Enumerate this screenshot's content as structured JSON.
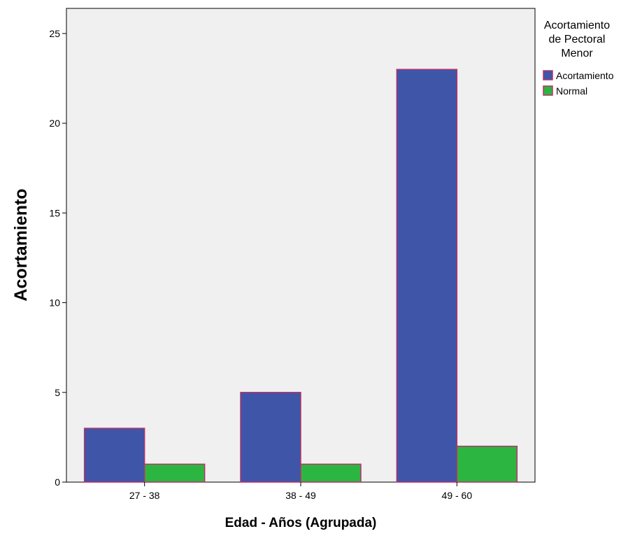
{
  "chart_data": {
    "type": "bar",
    "categories": [
      "27 - 38",
      "38 - 49",
      "49 - 60"
    ],
    "series": [
      {
        "name": "Acortamiento",
        "values": [
          3,
          5,
          23
        ],
        "color": "#3f55a8"
      },
      {
        "name": "Normal",
        "values": [
          1,
          1,
          2
        ],
        "color": "#2db542"
      }
    ],
    "xlabel": "Edad - Años (Agrupada)",
    "ylabel": "Acortamiento",
    "ylim": [
      0,
      26.4
    ],
    "yticks": [
      0,
      5,
      10,
      15,
      20,
      25
    ],
    "legend": {
      "title_lines": [
        "Acortamiento",
        "de Pectoral",
        "Menor"
      ],
      "position": "right"
    },
    "grid": false,
    "plot_background": "#f0f0f0",
    "bar_outline_color": "#b5336b"
  }
}
